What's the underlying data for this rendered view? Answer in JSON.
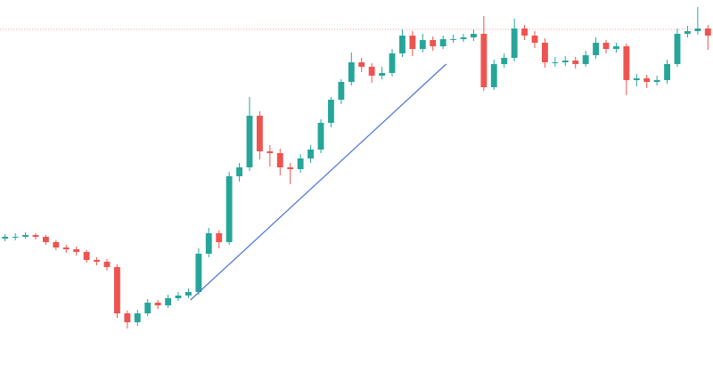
{
  "chart_data": {
    "type": "candlestick",
    "xlim": [
      -0.5,
      69.5
    ],
    "ylim": [
      0,
      419
    ],
    "up_color": "#26a69a",
    "down_color": "#ef5350",
    "open": [
      151,
      153,
      153,
      155,
      153,
      147,
      141,
      139,
      136,
      127,
      125,
      119,
      67,
      57,
      67,
      79,
      76,
      84,
      87,
      91,
      134,
      157,
      147,
      221,
      231,
      289,
      249,
      247,
      231,
      229,
      241,
      251,
      281,
      307,
      327,
      349,
      344,
      334,
      337,
      359,
      379,
      364,
      374,
      367,
      375,
      375,
      377,
      381,
      321,
      347,
      354,
      387,
      379,
      371,
      349,
      349,
      351,
      347,
      357,
      371,
      364,
      367,
      329,
      331,
      327,
      329,
      347,
      381,
      384,
      387
    ],
    "high": [
      156,
      157,
      158,
      157,
      155,
      149,
      144,
      142,
      138,
      130,
      128,
      122,
      70,
      71,
      83,
      82,
      88,
      91,
      95,
      140,
      163,
      160,
      226,
      236,
      310,
      294,
      256,
      252,
      236,
      246,
      256,
      285,
      310,
      330,
      360,
      354,
      348,
      344,
      364,
      386,
      384,
      381,
      378,
      379,
      380,
      381,
      386,
      401,
      352,
      359,
      398,
      391,
      384,
      376,
      355,
      356,
      355,
      362,
      377,
      374,
      371,
      370,
      336,
      335,
      334,
      352,
      387,
      390,
      411,
      391
    ],
    "low": [
      148,
      149,
      151,
      150,
      144,
      138,
      135,
      132,
      124,
      121,
      115,
      62,
      50,
      53,
      64,
      72,
      73,
      81,
      84,
      88,
      130,
      140,
      144,
      215,
      227,
      240,
      232,
      222,
      212,
      225,
      236,
      247,
      276,
      302,
      323,
      338,
      326,
      330,
      333,
      355,
      356,
      360,
      362,
      364,
      371,
      372,
      373,
      317,
      318,
      343,
      350,
      374,
      365,
      343,
      344,
      345,
      342,
      344,
      353,
      359,
      360,
      312,
      322,
      320,
      323,
      325,
      344,
      377,
      380,
      363
    ],
    "close": [
      153,
      153,
      155,
      153,
      147,
      141,
      139,
      136,
      127,
      125,
      119,
      67,
      57,
      67,
      79,
      76,
      84,
      87,
      91,
      134,
      157,
      147,
      221,
      231,
      289,
      249,
      247,
      231,
      229,
      241,
      251,
      281,
      307,
      327,
      349,
      344,
      334,
      337,
      359,
      379,
      364,
      374,
      367,
      375,
      375,
      377,
      381,
      321,
      347,
      354,
      387,
      379,
      371,
      349,
      349,
      351,
      347,
      357,
      371,
      364,
      367,
      329,
      331,
      327,
      329,
      347,
      381,
      384,
      387,
      379
    ],
    "hline": {
      "value": 386,
      "color": "#f4a3a3"
    },
    "trendline": {
      "x": [
        18.2,
        43.3
      ],
      "y": [
        82,
        347
      ],
      "color": "#4a72d9"
    }
  }
}
